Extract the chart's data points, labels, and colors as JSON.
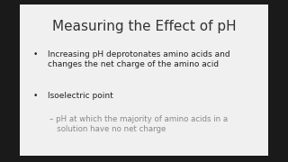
{
  "title": "Measuring the Effect of pH",
  "title_fontsize": 11,
  "title_color": "#333333",
  "background_color": "#f0f0f0",
  "outer_background": "#1a1a1a",
  "bullet1": "Increasing pH deprotonates amino acids and\nchanges the net charge of the amino acid",
  "bullet2": "Isoelectric point",
  "subbullet": "– pH at which the majority of amino acids in a\n   solution have no net charge",
  "bullet_color": "#222222",
  "subbullet_color": "#888888",
  "bullet_fontsize": 6.5,
  "subbullet_fontsize": 6.2,
  "bullet_marker": "•"
}
